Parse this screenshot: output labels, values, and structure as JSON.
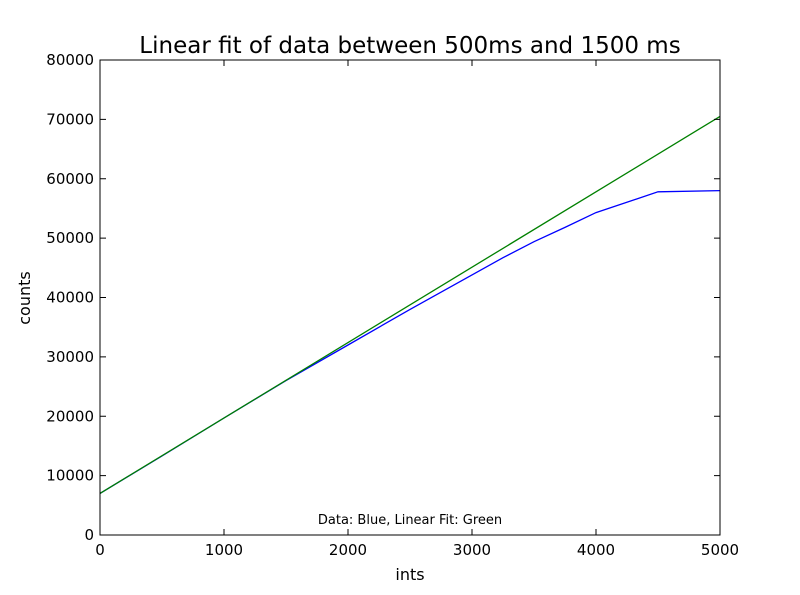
{
  "chart_data": {
    "type": "line",
    "title": "Linear fit of data between 500ms and 1500 ms",
    "xlabel": "ints",
    "ylabel": "counts",
    "xlim": [
      0,
      5000
    ],
    "ylim": [
      0,
      80000
    ],
    "xticks": [
      0,
      1000,
      2000,
      3000,
      4000,
      5000
    ],
    "yticks": [
      0,
      10000,
      20000,
      30000,
      40000,
      50000,
      60000,
      70000,
      80000
    ],
    "grid": false,
    "annotation": "Data: Blue, Linear Fit: Green",
    "series": [
      {
        "color": "#0000ff",
        "x": [
          0,
          500,
          1000,
          1500,
          2000,
          2500,
          3000,
          3250,
          3500,
          3750,
          4000,
          4500,
          5000
        ],
        "y": [
          7000,
          13300,
          19700,
          26000,
          32000,
          38000,
          43800,
          46700,
          49400,
          51800,
          54300,
          57800,
          58000
        ]
      },
      {
        "color": "#008000",
        "x": [
          0,
          5000
        ],
        "y": [
          7000,
          70500
        ]
      }
    ]
  }
}
